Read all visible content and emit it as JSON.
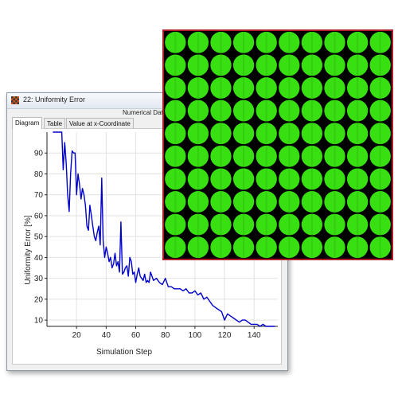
{
  "window": {
    "title": "22: Uniformity Error",
    "menu": "Numerical Data A"
  },
  "tabs": [
    {
      "label": "Diagram",
      "active": true
    },
    {
      "label": "Table",
      "active": false
    },
    {
      "label": "Value at x-Coordinate",
      "active": false
    }
  ],
  "colors": {
    "series": "#0000cc",
    "grid": "#e2e2e2",
    "tile_green": "#38e012",
    "tile_background": "#000000",
    "image_border": "#b01e2a"
  },
  "image": {
    "description_icon": "green-dot-grid",
    "rows": 10,
    "cols": 10
  },
  "chart_data": {
    "type": "line",
    "title": "",
    "xlabel": "Simulation Step",
    "ylabel": "Uniformity Error [%]",
    "xlim": [
      0,
      156
    ],
    "ylim": [
      7,
      100
    ],
    "xticks": [
      20,
      40,
      60,
      80,
      100,
      120,
      140
    ],
    "yticks": [
      10,
      20,
      30,
      40,
      50,
      60,
      70,
      80,
      90
    ],
    "grid": true,
    "series": [
      {
        "x": [
          4,
          6,
          8,
          10,
          11,
          12,
          13,
          14,
          15,
          16,
          17,
          18,
          19,
          20,
          21,
          22,
          23,
          24,
          25,
          26,
          27,
          28,
          29,
          30,
          31,
          32,
          33,
          34,
          35,
          36,
          37,
          38,
          39,
          40,
          41,
          42,
          43,
          44,
          45,
          46,
          47,
          48,
          49,
          50,
          51,
          52,
          53,
          54,
          55,
          56,
          57,
          58,
          59,
          60,
          61,
          62,
          63,
          64,
          65,
          66,
          67,
          68,
          69,
          70,
          72,
          74,
          76,
          78,
          80,
          82,
          84,
          86,
          88,
          90,
          92,
          94,
          96,
          98,
          100,
          102,
          104,
          106,
          108,
          110,
          112,
          114,
          116,
          118,
          120,
          122,
          124,
          126,
          128,
          130,
          132,
          134,
          136,
          138,
          140,
          142,
          144,
          146,
          148,
          150,
          152,
          154
        ],
        "y": [
          100,
          100,
          100,
          100,
          82,
          95,
          85,
          70,
          62,
          80,
          91,
          90,
          90,
          70,
          80,
          75,
          68,
          73,
          70,
          65,
          55,
          53,
          65,
          60,
          55,
          50,
          48,
          52,
          55,
          46,
          78,
          48,
          40,
          45,
          42,
          38,
          40,
          35,
          37,
          42,
          36,
          38,
          33,
          57,
          32,
          33,
          35,
          36,
          31,
          40,
          38,
          32,
          33,
          28,
          32,
          35,
          31,
          30,
          29,
          32,
          28,
          29,
          28,
          33,
          29,
          30,
          28,
          27,
          30,
          26,
          26,
          25,
          25,
          25,
          24,
          25,
          23,
          23,
          24,
          22,
          23,
          20,
          21,
          19,
          17,
          16,
          15,
          14,
          10,
          13,
          12,
          11,
          10,
          9,
          10,
          10,
          9,
          8,
          8,
          8,
          7,
          8,
          7,
          7,
          7,
          7
        ]
      }
    ]
  }
}
